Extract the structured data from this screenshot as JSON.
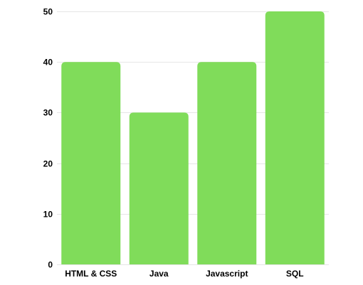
{
  "chart_data": {
    "type": "bar",
    "title": "",
    "xlabel": "",
    "ylabel": "",
    "categories": [
      "HTML & CSS",
      "Java",
      "Javascript",
      "SQL"
    ],
    "values": [
      40,
      30,
      40,
      50
    ],
    "ylim": [
      0,
      50
    ],
    "yticks": [
      0,
      10,
      20,
      30,
      40,
      50
    ],
    "grid": true,
    "legend": "none",
    "colors": {
      "bar": "#80dc5a",
      "grid": "#e6e6e6",
      "text": "#000000"
    }
  }
}
